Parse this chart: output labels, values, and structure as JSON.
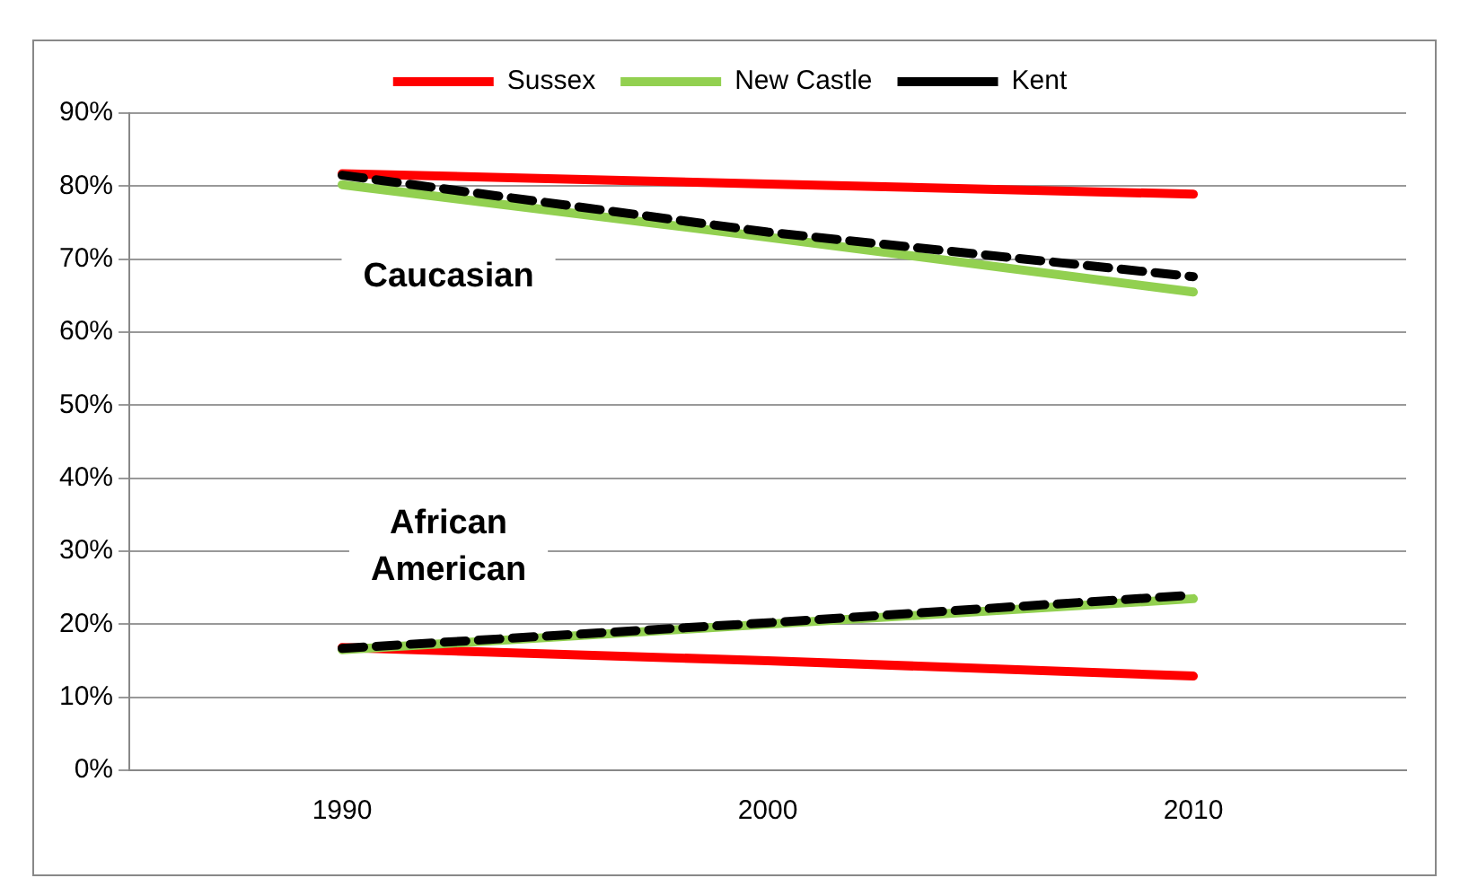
{
  "chart_data": {
    "type": "line",
    "categories": [
      "1990",
      "2000",
      "2010"
    ],
    "series": [
      {
        "name": "Sussex",
        "color": "#ff0000",
        "values": [
          81.7,
          80.3,
          78.9
        ]
      },
      {
        "name": "New Castle",
        "color": "#92d050",
        "values": [
          80.2,
          73.0,
          65.5
        ]
      },
      {
        "name": "Kent",
        "color": "#000000",
        "values": [
          81.5,
          73.7,
          67.6
        ],
        "line_style": "dashed"
      },
      {
        "color": "#ff0000",
        "values": [
          16.8,
          15.0,
          12.9
        ]
      },
      {
        "color": "#92d050",
        "values": [
          16.5,
          20.0,
          23.5
        ]
      },
      {
        "color": "#000000",
        "values": [
          16.7,
          20.2,
          24.0
        ],
        "line_style": "dashed"
      }
    ],
    "ylim": [
      0,
      90
    ],
    "yticks": [
      {
        "value": 0,
        "label": "0%"
      },
      {
        "value": 10,
        "label": "10%"
      },
      {
        "value": 20,
        "label": "20%"
      },
      {
        "value": 30,
        "label": "30%"
      },
      {
        "value": 40,
        "label": "40%"
      },
      {
        "value": 50,
        "label": "50%"
      },
      {
        "value": 60,
        "label": "60%"
      },
      {
        "value": 70,
        "label": "70%"
      },
      {
        "value": 80,
        "label": "80%"
      },
      {
        "value": 90,
        "label": "90%"
      }
    ],
    "annotations": [
      "Caucasian",
      "African\nAmerican"
    ],
    "grid": "y",
    "legend": "top",
    "marker": "none",
    "line_style": "solid"
  }
}
